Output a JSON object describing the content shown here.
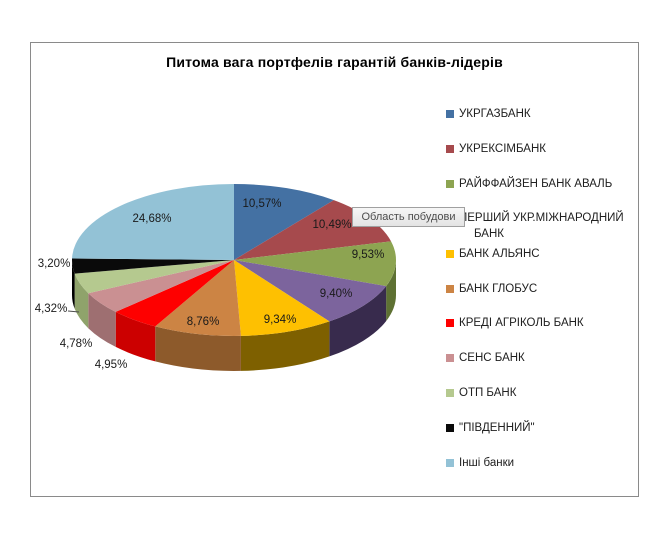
{
  "tooltip": {
    "text": "Область побудови"
  },
  "chart_data": {
    "type": "pie",
    "effect": "3d",
    "title": "Питома вага портфелів гарантій банків-лідерів",
    "legend_position": "right",
    "units": "percent",
    "labels": [
      "УКРГАЗБАНК",
      "УКРЕКСІМБАНК",
      "РАЙФФАЙЗЕН БАНК АВАЛЬ",
      "ПЕРШИЙ УКР.МІЖНАРОДНИЙ БАНК",
      "БАНК АЛЬЯНС",
      "БАНК ГЛОБУС",
      "КРЕДІ АГРІКОЛЬ БАНК",
      "СЕНС БАНК",
      "ОТП БАНК",
      "\"ПІВДЕННИЙ\"",
      "Інші банки"
    ],
    "values": [
      10.57,
      10.49,
      9.53,
      9.4,
      9.34,
      8.76,
      4.95,
      4.78,
      4.32,
      3.2,
      24.68
    ],
    "data_labels": [
      "10,57%",
      "10,49%",
      "9,53%",
      "9,40%",
      "9,34%",
      "8,76%",
      "4,95%",
      "4,78%",
      "4,32%",
      "3,20%",
      "24,68%"
    ],
    "colors": [
      "#4471A3",
      "#A64A4D",
      "#8DA451",
      "#7C649D",
      "#FEC001",
      "#CC8444",
      "#FE0000",
      "#CA9092",
      "#B5C98F",
      "#0A0A0A",
      "#93C2D6"
    ],
    "side_colors": [
      "#2E4F74",
      "#71302F",
      "#5E7133",
      "#382B4D",
      "#7E6000",
      "#8D5A2B",
      "#CC0000",
      "#9E6F71",
      "#8FA36B",
      "#000000",
      "#6B96A8"
    ],
    "background": "#FFFFFF",
    "border_color": "#8A8A8A",
    "title_color": "#000000"
  }
}
